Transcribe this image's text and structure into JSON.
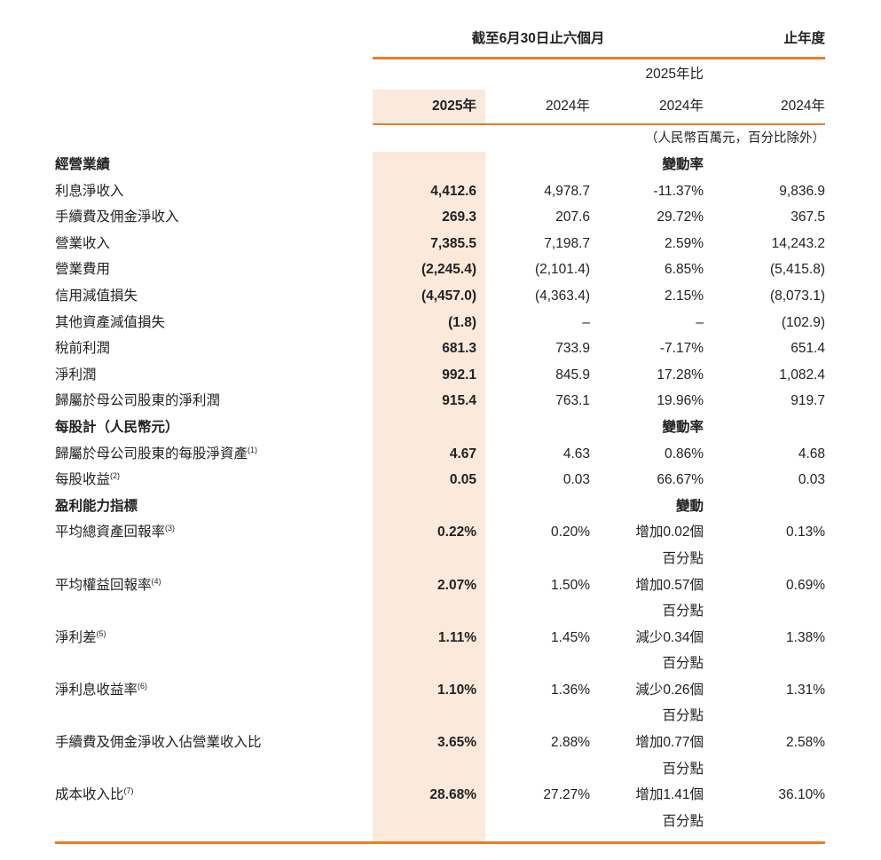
{
  "page": {
    "accent_color": "#E87E2B",
    "highlight_color": "#FBE9DC",
    "text_color": "#222222"
  },
  "table": {
    "header": {
      "period_six_months": "截至6月30日止六個月",
      "period_year": "止年度",
      "change_period_line": "2025年比",
      "col_2025": "2025年",
      "col_2024_interim": "2024年",
      "col_change": "2024年",
      "col_2024_full_year": "2024年",
      "unit_note": "（人民幣百萬元，百分比除外）"
    },
    "sections": [
      {
        "title": "經營業績",
        "change_header": "變動率",
        "rows": [
          {
            "label": "利息淨收入",
            "v2025": "4,412.6",
            "v2024": "4,978.7",
            "change": "-11.37%",
            "fy2024": "9,836.9"
          },
          {
            "label": "手續費及佣金淨收入",
            "v2025": "269.3",
            "v2024": "207.6",
            "change": "29.72%",
            "fy2024": "367.5"
          },
          {
            "label": "營業收入",
            "v2025": "7,385.5",
            "v2024": "7,198.7",
            "change": "2.59%",
            "fy2024": "14,243.2"
          },
          {
            "label": "營業費用",
            "v2025": "(2,245.4)",
            "v2024": "(2,101.4)",
            "change": "6.85%",
            "fy2024": "(5,415.8)"
          },
          {
            "label": "信用減值損失",
            "v2025": "(4,457.0)",
            "v2024": "(4,363.4)",
            "change": "2.15%",
            "fy2024": "(8,073.1)"
          },
          {
            "label": "其他資產減值損失",
            "v2025": "(1.8)",
            "v2024": "–",
            "change": "–",
            "fy2024": "(102.9)"
          },
          {
            "label": "稅前利潤",
            "v2025": "681.3",
            "v2024": "733.9",
            "change": "-7.17%",
            "fy2024": "651.4"
          },
          {
            "label": "淨利潤",
            "v2025": "992.1",
            "v2024": "845.9",
            "change": "17.28%",
            "fy2024": "1,082.4"
          },
          {
            "label": "歸屬於母公司股東的淨利潤",
            "v2025": "915.4",
            "v2024": "763.1",
            "change": "19.96%",
            "fy2024": "919.7"
          }
        ]
      },
      {
        "title": "每股計（人民幣元）",
        "change_header": "變動率",
        "rows": [
          {
            "label": "歸屬於母公司股東的每股淨資產",
            "sup": "(1)",
            "v2025": "4.67",
            "v2024": "4.63",
            "change": "0.86%",
            "fy2024": "4.68"
          },
          {
            "label": "每股收益",
            "sup": "(2)",
            "v2025": "0.05",
            "v2024": "0.03",
            "change": "66.67%",
            "fy2024": "0.03"
          }
        ]
      },
      {
        "title": "盈利能力指標",
        "change_header": "變動",
        "rows": [
          {
            "label": "平均總資產回報率",
            "sup": "(3)",
            "v2025": "0.22%",
            "v2024": "0.20%",
            "change": [
              "增加0.02個",
              "百分點"
            ],
            "fy2024": "0.13%"
          },
          {
            "label": "平均權益回報率",
            "sup": "(4)",
            "v2025": "2.07%",
            "v2024": "1.50%",
            "change": [
              "增加0.57個",
              "百分點"
            ],
            "fy2024": "0.69%"
          },
          {
            "label": "淨利差",
            "sup": "(5)",
            "v2025": "1.11%",
            "v2024": "1.45%",
            "change": [
              "減少0.34個",
              "百分點"
            ],
            "fy2024": "1.38%"
          },
          {
            "label": "淨利息收益率",
            "sup": "(6)",
            "v2025": "1.10%",
            "v2024": "1.36%",
            "change": [
              "減少0.26個",
              "百分點"
            ],
            "fy2024": "1.31%"
          },
          {
            "label": "手續費及佣金淨收入佔營業收入比",
            "v2025": "3.65%",
            "v2024": "2.88%",
            "change": [
              "增加0.77個",
              "百分點"
            ],
            "fy2024": "2.58%"
          },
          {
            "label": "成本收入比",
            "sup": "(7)",
            "v2025": "28.68%",
            "v2024": "27.27%",
            "change": [
              "增加1.41個",
              "百分點"
            ],
            "fy2024": "36.10%"
          }
        ]
      }
    ]
  }
}
